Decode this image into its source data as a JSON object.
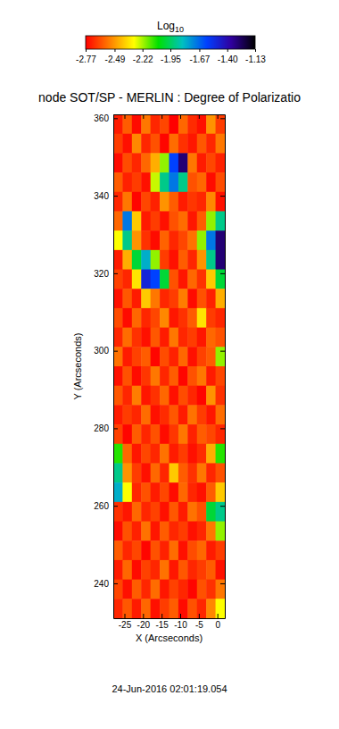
{
  "chart_data": {
    "type": "heatmap",
    "title": "node SOT/SP - MERLIN : Degree of Polarizatio",
    "x_label": "X (Arcseconds)",
    "y_label": "Y (Arcseconds)",
    "annotations": [
      "24-Jun-2016 02:01:19.054"
    ],
    "xlim": [
      -28,
      2
    ],
    "ylim": [
      231,
      361
    ],
    "xticks": [
      -25,
      -20,
      -15,
      -10,
      -5,
      0
    ],
    "yticks": [
      240,
      260,
      280,
      300,
      320,
      340,
      360
    ],
    "x": [
      -26.75,
      -24.25,
      -21.75,
      -19.25,
      -16.75,
      -14.25,
      -11.75,
      -9.25,
      -6.75,
      -4.25,
      -1.75,
      0.75
    ],
    "y": [
      358.5,
      353.5,
      348.5,
      343.5,
      338.5,
      333.5,
      328.5,
      323.5,
      318.5,
      313.5,
      308.5,
      303.5,
      298.5,
      293.5,
      288.5,
      283.5,
      278.5,
      273.5,
      268.5,
      263.5,
      258.5,
      253.5,
      248.5,
      243.5,
      238.5,
      233.5
    ],
    "values": [
      [
        -2.72,
        -2.6,
        -2.75,
        -2.55,
        -2.7,
        -2.64,
        -2.77,
        -2.58,
        -2.69,
        -2.74,
        -2.5,
        -2.66
      ],
      [
        -2.66,
        -2.74,
        -2.52,
        -2.7,
        -2.62,
        -2.76,
        -2.57,
        -2.68,
        -2.73,
        -2.61,
        -2.7,
        -2.55
      ],
      [
        -2.75,
        -2.63,
        -2.7,
        -2.58,
        -2.45,
        -2.2,
        -1.6,
        -1.3,
        -2.55,
        -2.72,
        -2.64,
        -2.71
      ],
      [
        -2.6,
        -2.71,
        -2.66,
        -2.74,
        -2.25,
        -1.9,
        -1.7,
        -1.9,
        -2.62,
        -2.58,
        -2.75,
        -2.63
      ],
      [
        -2.7,
        -2.55,
        -2.76,
        -2.64,
        -2.71,
        -2.5,
        -2.6,
        -2.72,
        -2.67,
        -2.7,
        -2.52,
        -2.74
      ],
      [
        -2.58,
        -1.7,
        -2.4,
        -2.72,
        -2.66,
        -2.74,
        -2.62,
        -2.57,
        -2.73,
        -2.6,
        -2.2,
        -1.9
      ],
      [
        -2.3,
        -1.9,
        -2.5,
        -2.68,
        -2.75,
        -2.59,
        -2.7,
        -2.64,
        -2.56,
        -2.2,
        -1.7,
        -1.3
      ],
      [
        -2.72,
        -2.45,
        -2.0,
        -1.8,
        -2.2,
        -2.66,
        -2.74,
        -2.6,
        -2.7,
        -2.5,
        -1.9,
        -1.3
      ],
      [
        -2.65,
        -2.7,
        -2.35,
        -1.5,
        -1.6,
        -2.0,
        -2.62,
        -2.73,
        -2.58,
        -2.68,
        -2.4,
        -2.0
      ],
      [
        -2.74,
        -2.61,
        -2.72,
        -2.4,
        -2.55,
        -2.7,
        -2.66,
        -2.54,
        -2.75,
        -2.62,
        -2.71,
        -2.45
      ],
      [
        -2.63,
        -2.75,
        -2.58,
        -2.7,
        -2.64,
        -2.52,
        -2.73,
        -2.68,
        -2.6,
        -2.35,
        -2.66,
        -2.7
      ],
      [
        -2.7,
        -2.57,
        -2.68,
        -2.74,
        -2.61,
        -2.72,
        -2.55,
        -2.7,
        -2.66,
        -2.73,
        -2.58,
        -2.62
      ],
      [
        -2.56,
        -2.72,
        -2.65,
        -2.6,
        -2.76,
        -2.63,
        -2.71,
        -2.58,
        -2.74,
        -2.65,
        -2.6,
        -2.2
      ],
      [
        -2.74,
        -2.62,
        -2.75,
        -2.67,
        -2.55,
        -2.7,
        -2.6,
        -2.76,
        -2.62,
        -2.55,
        -2.72,
        -2.64
      ],
      [
        -2.61,
        -2.7,
        -2.54,
        -2.73,
        -2.68,
        -2.58,
        -2.74,
        -2.63,
        -2.7,
        -2.76,
        -2.5,
        -2.68
      ],
      [
        -2.72,
        -2.66,
        -2.7,
        -2.57,
        -2.74,
        -2.69,
        -2.61,
        -2.72,
        -2.56,
        -2.66,
        -2.73,
        -2.57
      ],
      [
        -2.65,
        -2.76,
        -2.6,
        -2.7,
        -2.62,
        -2.75,
        -2.67,
        -2.55,
        -2.71,
        -2.6,
        -2.64,
        -2.7
      ],
      [
        -2.1,
        -2.58,
        -2.73,
        -2.64,
        -2.7,
        -2.56,
        -2.72,
        -2.66,
        -2.74,
        -2.69,
        -2.45,
        -2.1
      ],
      [
        -1.9,
        -2.5,
        -2.66,
        -2.74,
        -2.58,
        -2.7,
        -2.4,
        -2.6,
        -2.68,
        -2.55,
        -2.7,
        -2.62
      ],
      [
        -1.8,
        -2.3,
        -2.7,
        -2.62,
        -2.72,
        -2.64,
        -2.75,
        -2.58,
        -2.7,
        -2.74,
        -2.6,
        -2.4
      ],
      [
        -2.68,
        -2.73,
        -2.58,
        -2.7,
        -2.65,
        -2.74,
        -2.61,
        -2.72,
        -2.56,
        -2.62,
        -2.0,
        -1.9
      ],
      [
        -2.75,
        -2.62,
        -2.71,
        -2.56,
        -2.73,
        -2.6,
        -2.7,
        -2.66,
        -2.74,
        -2.7,
        -2.55,
        -2.2
      ],
      [
        -2.6,
        -2.7,
        -2.64,
        -2.76,
        -2.62,
        -2.71,
        -2.57,
        -2.74,
        -2.63,
        -2.58,
        -2.72,
        -2.66
      ],
      [
        -2.72,
        -2.58,
        -2.75,
        -2.65,
        -2.7,
        -2.56,
        -2.73,
        -2.61,
        -2.7,
        -2.66,
        -2.6,
        -2.74
      ],
      [
        -2.64,
        -2.74,
        -2.6,
        -2.7,
        -2.57,
        -2.73,
        -2.65,
        -2.7,
        -2.76,
        -2.62,
        -2.68,
        -2.55
      ],
      [
        -2.7,
        -2.61,
        -2.72,
        -2.58,
        -2.74,
        -2.66,
        -2.6,
        -2.75,
        -2.62,
        -2.7,
        -2.52,
        -2.3
      ]
    ],
    "colorbar": {
      "title": "Log10",
      "range": [
        -2.77,
        -1.13
      ],
      "ticks": [
        -2.77,
        -2.49,
        -2.22,
        -1.95,
        -1.67,
        {
          "value": -1.4,
          "label": "-1.40"
        },
        -1.13
      ]
    }
  }
}
